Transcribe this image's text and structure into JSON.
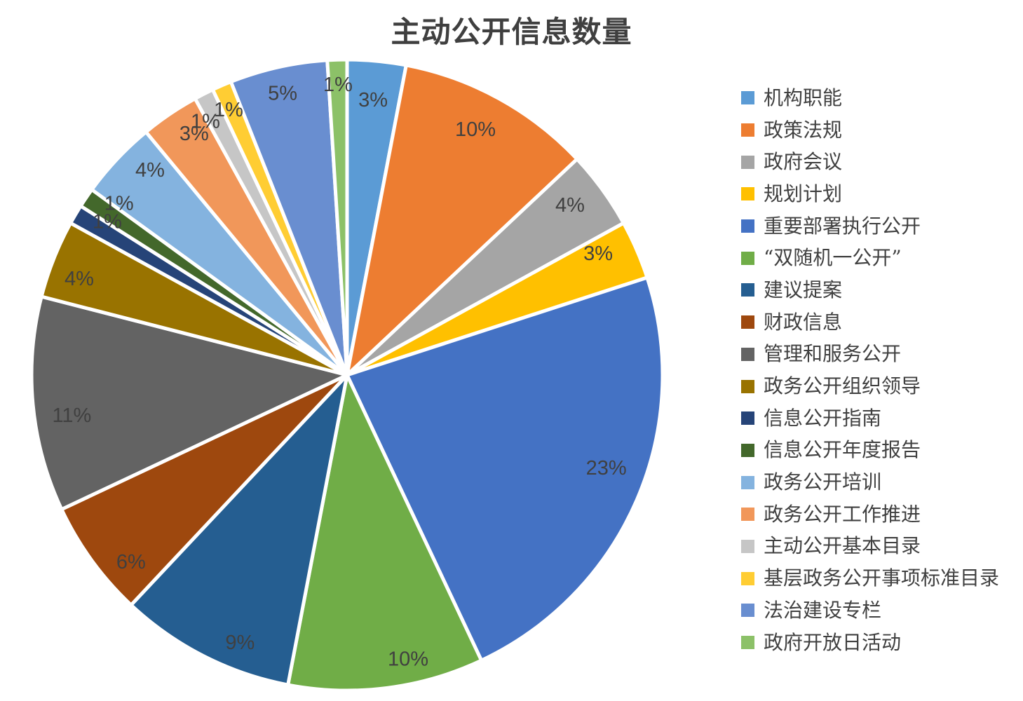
{
  "title": "主动公开信息数量",
  "chart_data": {
    "type": "pie",
    "title": "主动公开信息数量",
    "start_angle_deg": 0,
    "direction": "clockwise",
    "legend_position": "right",
    "slice_border_color": "#FFFFFF",
    "data_label_color": "#404040",
    "title_color": "#3F3F3F",
    "slices": [
      {
        "label": "机构职能",
        "value_pct": 3,
        "color": "#5B9BD5",
        "data_label": "3%"
      },
      {
        "label": "政策法规",
        "value_pct": 10,
        "color": "#ED7D31",
        "data_label": "10%"
      },
      {
        "label": "政府会议",
        "value_pct": 4,
        "color": "#A5A5A5",
        "data_label": "4%"
      },
      {
        "label": "规划计划",
        "value_pct": 3,
        "color": "#FFC000",
        "data_label": "3%"
      },
      {
        "label": "重要部署执行公开",
        "value_pct": 23,
        "color": "#4472C4",
        "data_label": "23%"
      },
      {
        "label": "“双随机一公开”",
        "value_pct": 10,
        "color": "#70AD47",
        "data_label": "10%"
      },
      {
        "label": "建议提案",
        "value_pct": 9,
        "color": "#255E91",
        "data_label": "9%"
      },
      {
        "label": "财政信息",
        "value_pct": 6,
        "color": "#9E480E",
        "data_label": "6%"
      },
      {
        "label": "管理和服务公开",
        "value_pct": 11,
        "color": "#636363",
        "data_label": "11%"
      },
      {
        "label": "政务公开组织领导",
        "value_pct": 4,
        "color": "#997300",
        "data_label": "4%"
      },
      {
        "label": "信息公开指南",
        "value_pct": 1,
        "color": "#264478",
        "data_label": "1%"
      },
      {
        "label": "信息公开年度报告",
        "value_pct": 1,
        "color": "#43682B",
        "data_label": "1%"
      },
      {
        "label": "政务公开培训",
        "value_pct": 4,
        "color": "#84B3DF",
        "data_label": "4%"
      },
      {
        "label": "政务公开工作推进",
        "value_pct": 3,
        "color": "#F1975A",
        "data_label": "3%"
      },
      {
        "label": "主动公开基本目录",
        "value_pct": 1,
        "color": "#C6C6C6",
        "data_label": "1%"
      },
      {
        "label": "基层政务公开事项标准目录",
        "value_pct": 1,
        "color": "#FFCD33",
        "data_label": "1%"
      },
      {
        "label": "法治建设专栏",
        "value_pct": 5,
        "color": "#698ED0",
        "data_label": "5%"
      },
      {
        "label": "政府开放日活动",
        "value_pct": 1,
        "color": "#8CC168",
        "data_label": "1%"
      }
    ]
  }
}
